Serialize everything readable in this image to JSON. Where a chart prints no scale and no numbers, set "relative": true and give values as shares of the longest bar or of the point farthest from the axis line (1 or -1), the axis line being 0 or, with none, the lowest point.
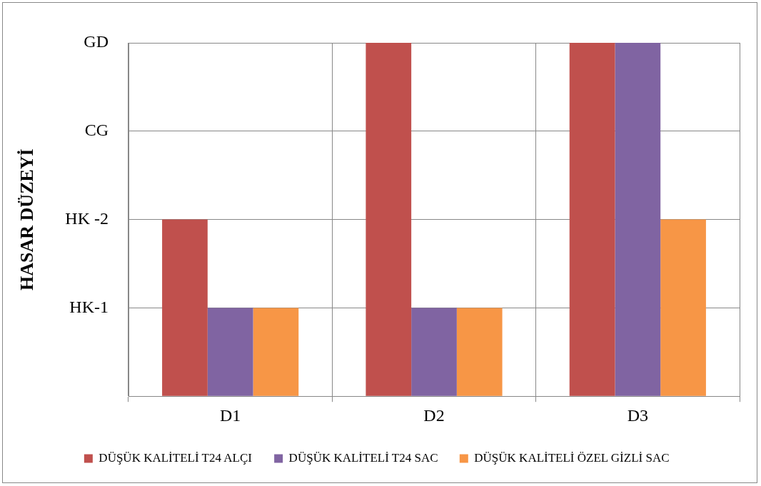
{
  "chart_data": {
    "type": "bar",
    "relative": true,
    "ylabel": "HASAR DÜZEYİ",
    "categories": [
      "D1",
      "D2",
      "D3"
    ],
    "series": [
      {
        "name": "DÜŞÜK KALİTELİ T24 ALÇI",
        "color": "#c0504d",
        "values": [
          0.5,
          1,
          1
        ]
      },
      {
        "name": "DÜŞÜK KALİTELİ T24 SAC",
        "color": "#8064a2",
        "values": [
          0.25,
          0.25,
          1
        ]
      },
      {
        "name": "DÜŞÜK KALİTELİ ÖZEL GİZLİ SAC",
        "color": "#f79646",
        "values": [
          0.25,
          0.25,
          0.5
        ]
      }
    ],
    "annotations": [
      "HK-1",
      "HK -2",
      "CG",
      "GD"
    ],
    "grid": true,
    "legend": "bottom"
  }
}
